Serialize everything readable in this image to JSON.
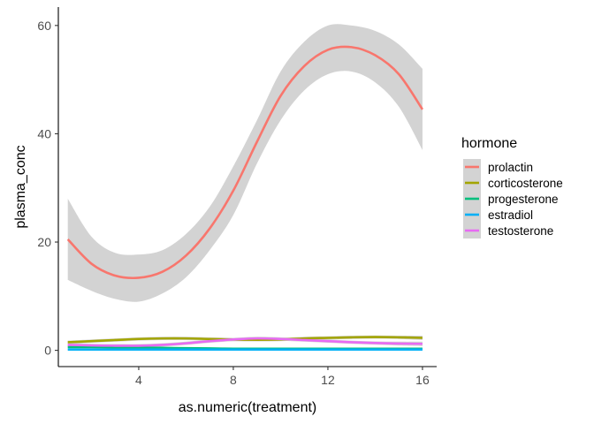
{
  "chart_data": {
    "type": "line",
    "xlabel": "as.numeric(treatment)",
    "ylabel": "plasma_conc",
    "xlim": [
      0.6,
      16.6
    ],
    "ylim": [
      -3,
      63.4
    ],
    "xticks": [
      4,
      8,
      12,
      16
    ],
    "yticks": [
      0,
      20,
      40,
      60
    ],
    "grid": false,
    "legend": {
      "title": "hormone",
      "placement": "right"
    },
    "ribbon_color": "#d3d3d3",
    "series": [
      {
        "name": "prolactin",
        "color": "#F8766D",
        "x": [
          1,
          2,
          3,
          4,
          5,
          6,
          7,
          8,
          9,
          10,
          11,
          12,
          13,
          14,
          15,
          16
        ],
        "y": [
          20.5,
          16.0,
          13.8,
          13.4,
          14.5,
          17.5,
          22.5,
          29.5,
          38.5,
          47.0,
          52.5,
          55.5,
          56.0,
          54.5,
          51.0,
          44.5
        ],
        "lower": [
          13.0,
          11.0,
          9.5,
          9.0,
          10.5,
          13.5,
          18.5,
          25.0,
          34.5,
          42.5,
          48.0,
          51.0,
          51.5,
          49.5,
          45.0,
          37.0
        ],
        "upper": [
          28.0,
          21.0,
          18.0,
          17.7,
          18.5,
          21.5,
          26.5,
          34.0,
          42.5,
          51.5,
          57.0,
          60.0,
          60.0,
          59.0,
          56.5,
          52.0
        ]
      },
      {
        "name": "corticosterone",
        "color": "#A3A500",
        "x": [
          1,
          2,
          3,
          4,
          5,
          6,
          7,
          8,
          9,
          10,
          11,
          12,
          13,
          14,
          15,
          16
        ],
        "y": [
          1.5,
          1.7,
          1.9,
          2.1,
          2.2,
          2.2,
          2.1,
          2.0,
          1.95,
          2.0,
          2.2,
          2.3,
          2.4,
          2.45,
          2.4,
          2.3
        ],
        "lower": [
          1.2,
          1.4,
          1.6,
          1.8,
          1.9,
          1.9,
          1.8,
          1.7,
          1.65,
          1.7,
          1.9,
          2.0,
          2.1,
          2.15,
          2.1,
          1.9
        ],
        "upper": [
          1.8,
          2.0,
          2.2,
          2.4,
          2.5,
          2.5,
          2.4,
          2.3,
          2.25,
          2.3,
          2.5,
          2.6,
          2.7,
          2.75,
          2.7,
          2.7
        ]
      },
      {
        "name": "progesterone",
        "color": "#00BF7D",
        "x": [
          1,
          2,
          3,
          4,
          5,
          6,
          7,
          8,
          9,
          10,
          11,
          12,
          13,
          14,
          15,
          16
        ],
        "y": [
          0.6,
          0.6,
          0.55,
          0.5,
          0.45,
          0.4,
          0.35,
          0.3,
          0.3,
          0.3,
          0.3,
          0.3,
          0.3,
          0.3,
          0.3,
          0.3
        ],
        "lower": [
          0.45,
          0.45,
          0.4,
          0.35,
          0.3,
          0.25,
          0.2,
          0.15,
          0.15,
          0.15,
          0.15,
          0.15,
          0.15,
          0.15,
          0.15,
          0.15
        ],
        "upper": [
          0.75,
          0.75,
          0.7,
          0.65,
          0.6,
          0.55,
          0.5,
          0.45,
          0.45,
          0.45,
          0.45,
          0.45,
          0.45,
          0.45,
          0.45,
          0.45
        ]
      },
      {
        "name": "estradiol",
        "color": "#00B0F6",
        "x": [
          1,
          2,
          3,
          4,
          5,
          6,
          7,
          8,
          9,
          10,
          11,
          12,
          13,
          14,
          15,
          16
        ],
        "y": [
          0.15,
          0.15,
          0.15,
          0.15,
          0.15,
          0.15,
          0.15,
          0.15,
          0.15,
          0.15,
          0.15,
          0.15,
          0.15,
          0.15,
          0.15,
          0.15
        ],
        "lower": [
          0.05,
          0.05,
          0.05,
          0.05,
          0.05,
          0.05,
          0.05,
          0.05,
          0.05,
          0.05,
          0.05,
          0.05,
          0.05,
          0.05,
          0.05,
          0.05
        ],
        "upper": [
          0.25,
          0.25,
          0.25,
          0.25,
          0.25,
          0.25,
          0.25,
          0.25,
          0.25,
          0.25,
          0.25,
          0.25,
          0.25,
          0.25,
          0.25,
          0.25
        ]
      },
      {
        "name": "testosterone",
        "color": "#E76BF3",
        "x": [
          1,
          2,
          3,
          4,
          5,
          6,
          7,
          8,
          9,
          10,
          11,
          12,
          13,
          14,
          15,
          16
        ],
        "y": [
          1.0,
          0.9,
          0.85,
          0.85,
          1.0,
          1.3,
          1.7,
          2.0,
          2.2,
          2.1,
          1.9,
          1.7,
          1.5,
          1.35,
          1.25,
          1.2
        ],
        "lower": [
          0.6,
          0.6,
          0.55,
          0.55,
          0.7,
          1.0,
          1.4,
          1.7,
          1.9,
          1.8,
          1.6,
          1.4,
          1.2,
          1.05,
          0.9,
          0.8
        ],
        "upper": [
          1.4,
          1.2,
          1.15,
          1.15,
          1.3,
          1.6,
          2.0,
          2.3,
          2.5,
          2.4,
          2.2,
          2.0,
          1.8,
          1.65,
          1.6,
          1.6
        ]
      }
    ]
  }
}
